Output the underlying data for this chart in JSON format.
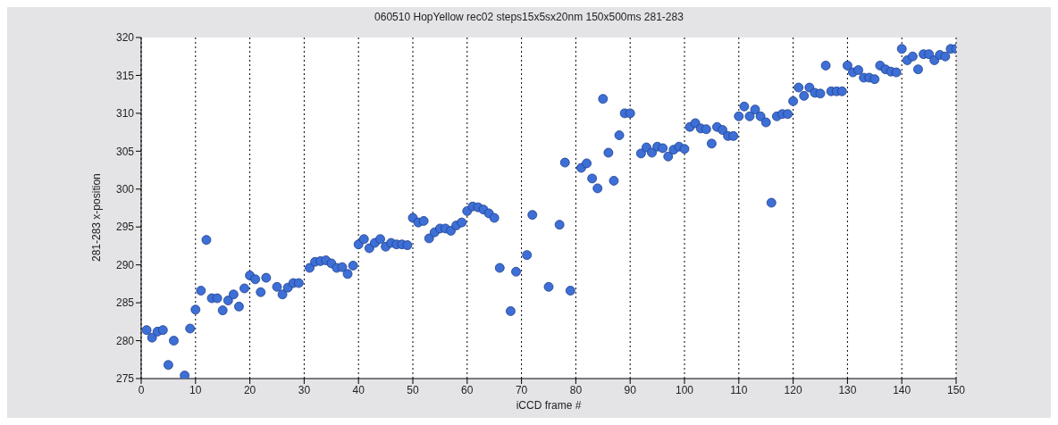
{
  "chart_data": {
    "type": "scatter",
    "title": "060510 HopYellow rec02 steps15x5sx20nm 150x500ms 281-283",
    "xlabel": "iCCD frame #",
    "ylabel": "281-283 x-position",
    "x": [
      1,
      2,
      3,
      4,
      5,
      6,
      8,
      9,
      10,
      11,
      12,
      13,
      14,
      15,
      16,
      17,
      18,
      19,
      20,
      21,
      22,
      23,
      25,
      26,
      27,
      28,
      29,
      31,
      32,
      33,
      34,
      35,
      36,
      37,
      38,
      39,
      40,
      41,
      42,
      43,
      44,
      45,
      46,
      47,
      48,
      49,
      50,
      51,
      52,
      53,
      54,
      55,
      56,
      57,
      58,
      59,
      60,
      61,
      62,
      63,
      64,
      65,
      66,
      68,
      69,
      71,
      72,
      75,
      77,
      78,
      79,
      81,
      82,
      83,
      84,
      85,
      86,
      87,
      88,
      89,
      90,
      92,
      93,
      94,
      95,
      96,
      97,
      98,
      99,
      100,
      101,
      102,
      103,
      104,
      105,
      106,
      107,
      108,
      109,
      110,
      111,
      112,
      113,
      114,
      115,
      116,
      117,
      118,
      119,
      120,
      121,
      122,
      123,
      124,
      125,
      126,
      127,
      128,
      129,
      130,
      131,
      132,
      133,
      134,
      135,
      136,
      137,
      138,
      139,
      140,
      141,
      142,
      143,
      144,
      145,
      146,
      147,
      148,
      149,
      150
    ],
    "series": [
      {
        "color": "#3d6fd6",
        "values": [
          281.4,
          280.4,
          281.2,
          281.4,
          276.8,
          280.0,
          275.4,
          281.6,
          284.1,
          286.6,
          293.3,
          285.6,
          285.6,
          284.0,
          285.3,
          286.1,
          284.5,
          286.9,
          288.6,
          288.1,
          286.4,
          288.3,
          287.1,
          286.1,
          287.0,
          287.6,
          287.6,
          289.6,
          290.4,
          290.5,
          290.6,
          290.2,
          289.6,
          289.7,
          288.8,
          289.9,
          292.7,
          293.4,
          292.2,
          292.9,
          293.4,
          292.4,
          292.9,
          292.7,
          292.7,
          292.6,
          296.2,
          295.6,
          295.8,
          293.5,
          294.3,
          294.8,
          294.8,
          294.5,
          295.2,
          295.6,
          297.1,
          297.7,
          297.6,
          297.3,
          296.8,
          296.2,
          289.6,
          283.9,
          289.1,
          291.3,
          296.6,
          287.1,
          295.3,
          303.5,
          286.6,
          302.8,
          303.4,
          301.4,
          300.1,
          311.9,
          304.8,
          301.1,
          307.1,
          310.0,
          310.0,
          304.7,
          305.5,
          304.8,
          305.6,
          305.4,
          304.3,
          305.2,
          305.6,
          305.3,
          308.2,
          308.7,
          308.0,
          307.9,
          306.0,
          308.2,
          307.8,
          307.0,
          307.0,
          309.6,
          310.9,
          309.6,
          310.5,
          309.6,
          308.8,
          298.2,
          309.6,
          309.9,
          309.9,
          311.6,
          313.4,
          312.3,
          313.4,
          312.7,
          312.6,
          316.3,
          312.9,
          312.9,
          312.9,
          316.3,
          315.4,
          315.7,
          314.7,
          314.7,
          314.5,
          316.3,
          315.8,
          315.5,
          315.4,
          318.5,
          317.0,
          317.5,
          315.8,
          317.8,
          317.8,
          317.0,
          317.7,
          317.5,
          318.5,
          318.5
        ]
      }
    ],
    "xlim": [
      0,
      150
    ],
    "xticks": [
      0,
      10,
      20,
      30,
      40,
      50,
      60,
      70,
      80,
      90,
      100,
      110,
      120,
      130,
      140,
      150
    ],
    "ylim": [
      275,
      320
    ],
    "yticks": [
      275,
      280,
      285,
      290,
      295,
      300,
      305,
      310,
      315,
      320
    ],
    "grid": "x",
    "marker": "circle",
    "legend": false
  }
}
